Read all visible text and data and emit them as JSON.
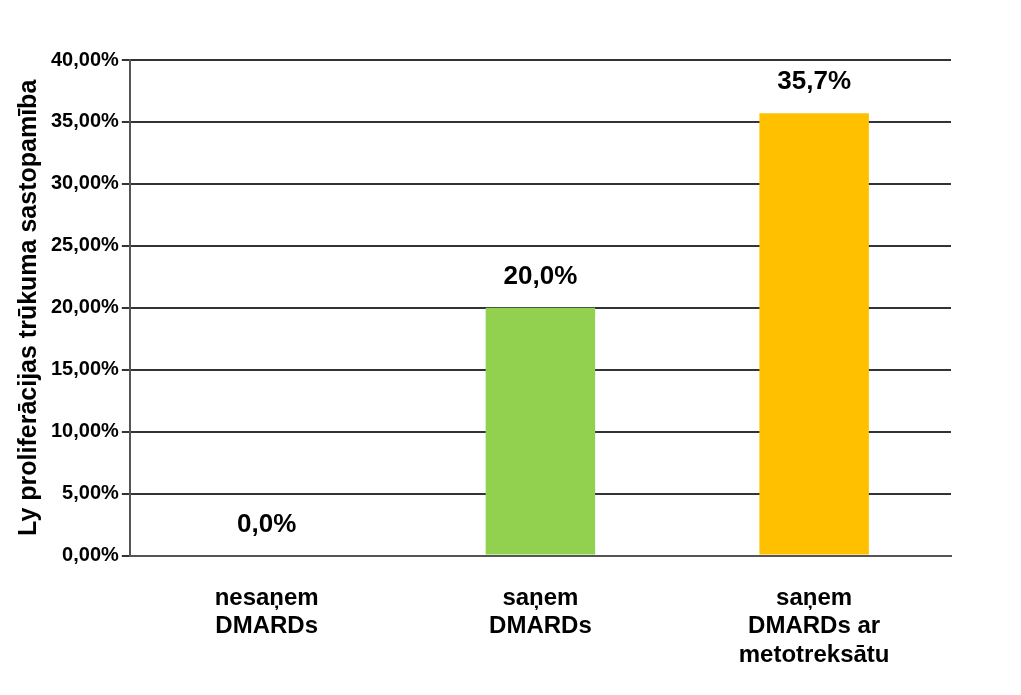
{
  "chart_data": {
    "type": "bar",
    "ylabel": "Ly proliferācijas trūkuma sastopamība",
    "categories": [
      "nesaņem DMARDs",
      "saņem DMARDs",
      "saņem DMARDs ar metotreksātu"
    ],
    "values": [
      0,
      20.0,
      35.7
    ],
    "colors": [
      "#c8c800",
      "#92d050",
      "#ffc000"
    ],
    "value_labels": [
      "0,0%",
      "20,0%",
      "35,7%"
    ],
    "ylim": [
      0,
      40
    ],
    "yticks": [
      {
        "value": 0,
        "label": "0,00%"
      },
      {
        "value": 5,
        "label": "5,00%"
      },
      {
        "value": 10,
        "label": "10,00%"
      },
      {
        "value": 15,
        "label": "15,00%"
      },
      {
        "value": 20,
        "label": "20,00%"
      },
      {
        "value": 25,
        "label": "25,00%"
      },
      {
        "value": 30,
        "label": "30,00%"
      },
      {
        "value": 35,
        "label": "35,00%"
      },
      {
        "value": 40,
        "label": "40,00%"
      }
    ],
    "grid": "y"
  }
}
